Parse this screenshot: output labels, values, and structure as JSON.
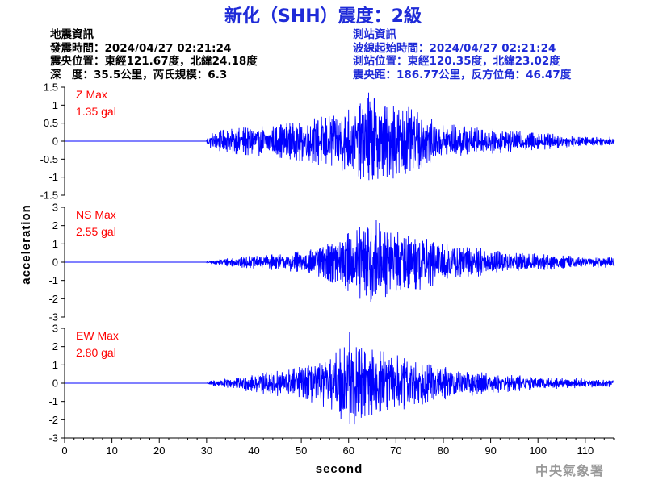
{
  "header": {
    "title": "新化（SHH）震度：2級"
  },
  "quake_info": {
    "heading": "地震資訊",
    "origin_time": "發震時間：2024/04/27 02:21:24",
    "epicenter": "震央位置：東經121.67度，北緯24.18度",
    "depth_magnitude": "深　度：35.5公里，芮氏規模：6.3"
  },
  "station_info": {
    "heading": "測站資訊",
    "wave_start": "波線起始時間：2024/04/27 02:21:24",
    "station_location": "測站位置：東經120.35度，北緯23.02度",
    "distance": "震央距：186.77公里，反方位角：46.47度"
  },
  "footer": {
    "agency": "中央氣象署"
  },
  "colors": {
    "title": "#1f2bd8",
    "trace": "#0000ff",
    "max_label": "#ff0000",
    "axis": "#000000",
    "agency": "#9a9a9a"
  },
  "chart_data": {
    "type": "line",
    "xlabel": "second",
    "ylabel": "acceleration",
    "xlim": [
      0,
      116
    ],
    "xticks": [
      0,
      10,
      20,
      30,
      40,
      50,
      60,
      70,
      80,
      90,
      100,
      110
    ],
    "grid": false,
    "panels": [
      {
        "name": "Z",
        "max_label": "Z Max",
        "max_value_label": "1.35 gal",
        "max_abs": 1.35,
        "ylim": [
          -1.5,
          1.5
        ],
        "yticks": [
          1.5,
          1,
          0.5,
          0,
          -0.5,
          -1,
          -1.5
        ],
        "signal_onset": 30,
        "peak_time": 64,
        "envelope_x": [
          0,
          29.5,
          31,
          35,
          40,
          45,
          50,
          55,
          58,
          62,
          64,
          68,
          72,
          75,
          80,
          90,
          100,
          110,
          116
        ],
        "envelope_y": [
          0,
          0,
          0.25,
          0.35,
          0.4,
          0.45,
          0.55,
          0.7,
          0.8,
          0.95,
          1.35,
          1.0,
          1.1,
          0.75,
          0.5,
          0.35,
          0.25,
          0.12,
          0.12
        ]
      },
      {
        "name": "NS",
        "max_label": "NS Max",
        "max_value_label": "2.55 gal",
        "max_abs": 2.55,
        "ylim": [
          -3,
          3
        ],
        "yticks": [
          3,
          2,
          1,
          0,
          -1,
          -2,
          -3
        ],
        "signal_onset": 30,
        "peak_time": 65,
        "envelope_x": [
          0,
          29.5,
          31,
          35,
          40,
          45,
          50,
          55,
          60,
          63,
          65,
          68,
          72,
          75,
          80,
          90,
          100,
          110,
          116
        ],
        "envelope_y": [
          0,
          0,
          0.1,
          0.25,
          0.35,
          0.45,
          0.6,
          0.9,
          1.6,
          2.1,
          2.55,
          2.0,
          1.4,
          1.5,
          1.1,
          0.7,
          0.45,
          0.3,
          0.3
        ]
      },
      {
        "name": "EW",
        "max_label": "EW Max",
        "max_value_label": "2.80 gal",
        "max_abs": 2.8,
        "ylim": [
          -3,
          3
        ],
        "yticks": [
          3,
          2,
          1,
          0,
          -1,
          -2,
          -3
        ],
        "signal_onset": 30,
        "peak_time": 60.5,
        "envelope_x": [
          0,
          29.5,
          31,
          35,
          40,
          45,
          50,
          55,
          58,
          60.5,
          63,
          66,
          70,
          75,
          80,
          90,
          100,
          110,
          116
        ],
        "envelope_y": [
          0,
          0,
          0.15,
          0.3,
          0.5,
          0.7,
          0.9,
          1.3,
          1.8,
          2.8,
          2.0,
          1.8,
          1.6,
          1.2,
          0.9,
          0.55,
          0.35,
          0.25,
          0.2
        ]
      }
    ]
  }
}
